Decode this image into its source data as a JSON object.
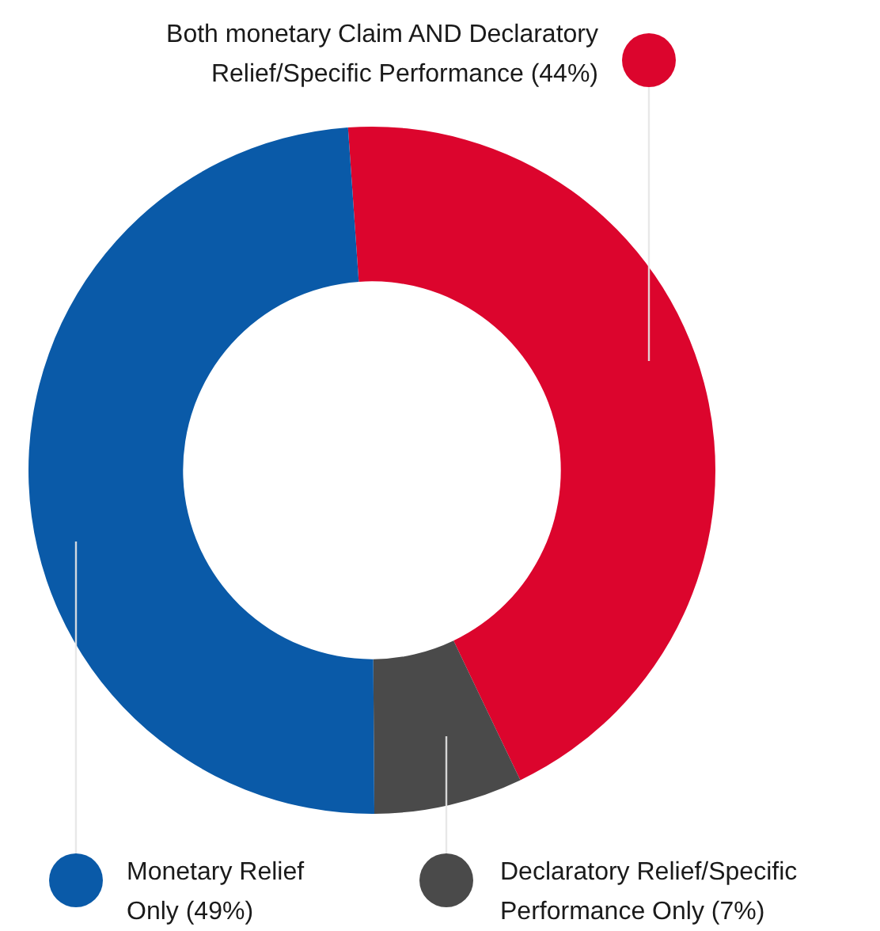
{
  "chart_data": {
    "type": "donut",
    "categories": [
      "Both monetary Claim AND Declaratory Relief/Specific Performance",
      "Declaratory Relief/Specific Performance Only",
      "Monetary Relief Only"
    ],
    "values": [
      44,
      7,
      49
    ],
    "colors": [
      "#dc052d",
      "#4a4a4a",
      "#0a5aa8"
    ],
    "value_labels": [
      "(44%)",
      "(7%)",
      "(49%)"
    ],
    "legend": "bottom"
  }
}
